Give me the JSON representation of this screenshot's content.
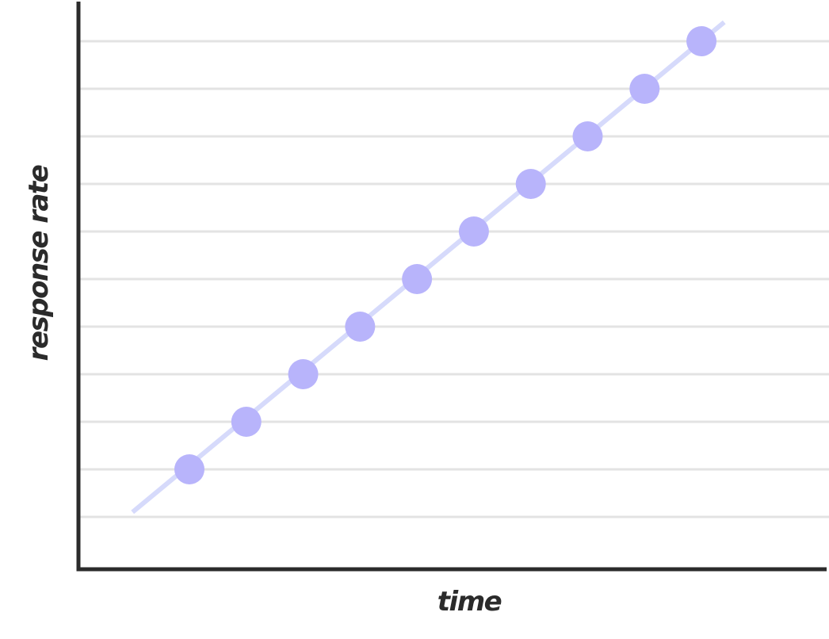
{
  "chart_data": {
    "type": "scatter",
    "x_label": "time",
    "y_label": "response rate",
    "series": [
      {
        "color": "#b8b4fb",
        "x": [
          1,
          2,
          3,
          4,
          5,
          6,
          7,
          8,
          9,
          10
        ],
        "values": [
          2,
          3,
          4,
          5,
          6,
          7,
          8,
          9,
          10,
          11
        ]
      }
    ],
    "trend_line": {
      "color": "#d6dafb",
      "x": [
        0,
        10.4
      ],
      "values": [
        1.1,
        11.4
      ]
    },
    "xlim": [
      -0.95,
      12.2
    ],
    "ylim": [
      -0.1,
      11.8
    ],
    "yticks": [
      1,
      2,
      3,
      4,
      5,
      6,
      7,
      8,
      9,
      10,
      11
    ],
    "grid": true,
    "show_tick_labels": false
  }
}
